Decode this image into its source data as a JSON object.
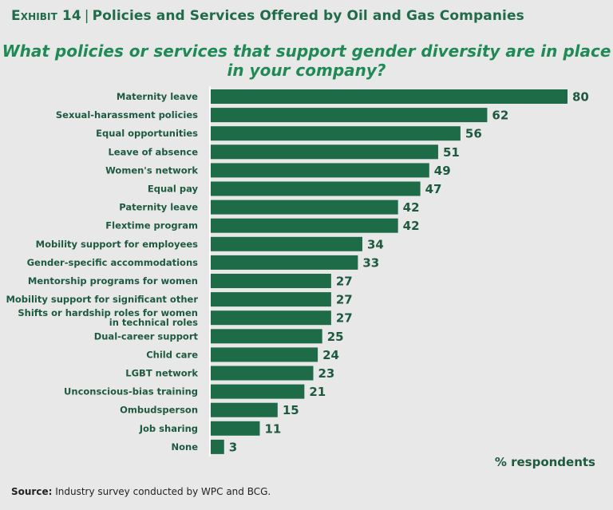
{
  "header": {
    "exhibit_label": "Exhibit 14",
    "title": "Policies and Services Offered by Oil and Gas Companies"
  },
  "colors": {
    "bar": "#1e6b47",
    "header_text": "#1f6b4a",
    "question_text": "#1f8a56",
    "label_text": "#1e5a40",
    "background": "#e8e8e8"
  },
  "chart_data": {
    "type": "bar",
    "orientation": "horizontal",
    "title": "What policies or services that support gender diversity are in place in your company?",
    "xlabel": "% respondents",
    "ylabel": "",
    "xlim": [
      0,
      80
    ],
    "grid": false,
    "categories": [
      "Maternity leave",
      "Sexual-harassment policies",
      "Equal opportunities",
      "Leave of absence",
      "Women's network",
      "Equal pay",
      "Paternity leave",
      "Flextime program",
      "Mobility support for employees",
      "Gender-specific accommodations",
      "Mentorship programs for women",
      "Mobility support for significant other",
      "Shifts or hardship roles for women in technical roles",
      "Dual-career support",
      "Child care",
      "LGBT network",
      "Unconscious-bias training",
      "Ombudsperson",
      "Job sharing",
      "None"
    ],
    "values": [
      80,
      62,
      56,
      51,
      49,
      47,
      42,
      42,
      34,
      33,
      27,
      27,
      27,
      25,
      24,
      23,
      21,
      15,
      11,
      3
    ]
  },
  "source": {
    "label": "Source:",
    "text": "Industry survey conducted by WPC and BCG."
  }
}
